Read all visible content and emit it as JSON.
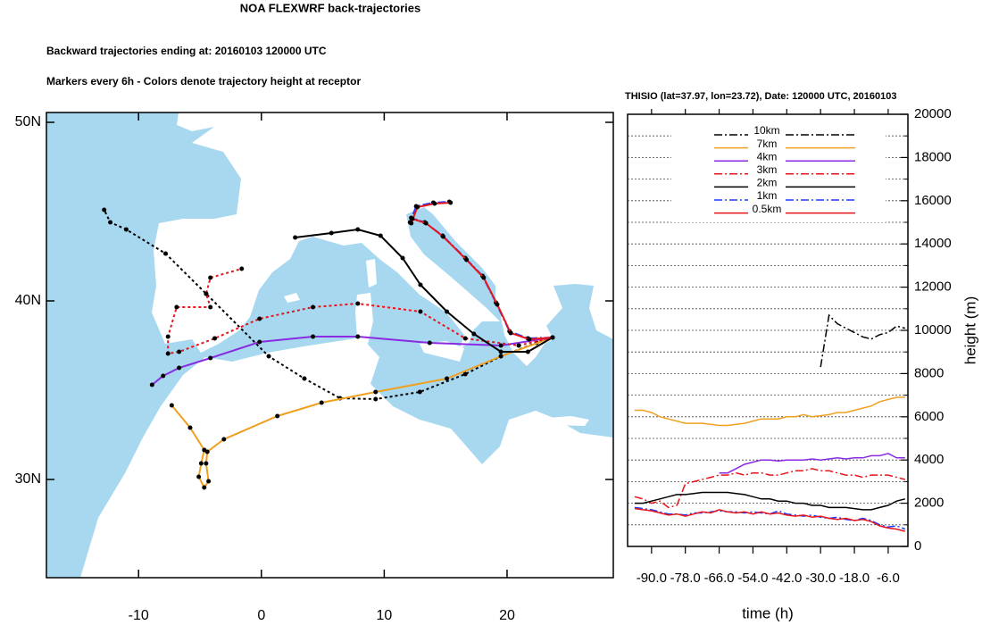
{
  "chart_data": [
    {
      "type": "map",
      "title": "NOA FLEXWRF back-trajectories",
      "subtitle": "Backward trajectories ending at: 20160103  120000 UTC",
      "annotation": "Markers every 6h - Colors denote trajectory height at receptor",
      "xlim": [
        -17.5,
        28.65
      ],
      "ylim": [
        24.5,
        50.55
      ],
      "xticks": [
        -10,
        0,
        10,
        20
      ],
      "yticks": [
        {
          "value": 30,
          "label": "30N"
        },
        {
          "value": 40,
          "label": "40N"
        },
        {
          "value": 50,
          "label": "50N"
        }
      ],
      "series": [
        {
          "color": "#000000",
          "dash": "dotted",
          "x": [
            23.7,
            22.4,
            19.5,
            16.6,
            12.9,
            9.3,
            6.4,
            3.5,
            0.6,
            -4.5,
            -7.8,
            -11.0,
            -12.3,
            -12.8
          ],
          "values": [
            37.95,
            37.65,
            36.9,
            35.9,
            34.9,
            34.5,
            34.55,
            35.65,
            36.9,
            40.4,
            42.65,
            44.0,
            44.4,
            45.1
          ]
        },
        {
          "color": "#f0a020",
          "dash": "solid",
          "x": [
            23.7,
            19.5,
            15.1,
            9.3,
            4.9,
            1.3,
            -3.05,
            -4.4,
            -4.5,
            -4.3,
            -4.65,
            -5.1,
            -4.9,
            -4.65,
            -5.8,
            -7.3
          ],
          "values": [
            37.95,
            36.9,
            35.65,
            34.9,
            34.3,
            33.55,
            32.25,
            31.55,
            30.9,
            29.9,
            29.55,
            30.15,
            30.9,
            31.65,
            32.9,
            34.15
          ]
        },
        {
          "color": "#8a2be2",
          "dash": "solid",
          "x": [
            23.7,
            19.5,
            13.7,
            7.85,
            4.2,
            -0.15,
            -4.15,
            -6.7,
            -8.0,
            -8.9
          ],
          "values": [
            37.95,
            37.5,
            37.65,
            38.0,
            38.0,
            37.7,
            36.8,
            36.25,
            35.8,
            35.3
          ]
        },
        {
          "color": "#e8141c",
          "dash": "dotted",
          "x": [
            23.7,
            20.95,
            16.6,
            12.95,
            7.85,
            4.2,
            -0.15,
            -3.8,
            -6.7,
            -7.6,
            -7.6,
            -6.9,
            -4.15,
            -4.5,
            -4.15,
            -1.6
          ],
          "values": [
            37.95,
            37.5,
            37.9,
            39.4,
            39.85,
            39.65,
            39.0,
            37.9,
            37.15,
            37.05,
            38.0,
            39.65,
            39.65,
            40.4,
            41.3,
            41.8
          ]
        },
        {
          "color": "#000000",
          "dash": "solid",
          "x": [
            23.7,
            21.7,
            19.5,
            17.3,
            15.1,
            12.95,
            11.5,
            9.7,
            7.85,
            5.7,
            2.75
          ],
          "values": [
            37.95,
            37.15,
            37.15,
            38.15,
            39.4,
            40.9,
            42.4,
            43.65,
            44.0,
            43.8,
            43.55
          ]
        },
        {
          "color": "#1f3cff",
          "dash": "dashdot",
          "x": [
            23.7,
            21.7,
            20.2,
            19.1,
            18.0,
            16.6,
            14.75,
            13.3,
            12.2,
            12.1,
            12.6,
            14.0,
            15.3
          ],
          "values": [
            37.95,
            37.9,
            38.3,
            39.9,
            41.4,
            42.4,
            43.65,
            44.4,
            44.65,
            44.4,
            45.3,
            45.5,
            45.55
          ]
        },
        {
          "color": "#e8141c",
          "dash": "solid",
          "x": [
            23.7,
            21.8,
            20.3,
            19.2,
            18.1,
            16.7,
            14.8,
            13.4,
            12.3,
            12.2,
            12.7,
            14.1,
            15.4
          ],
          "values": [
            37.95,
            37.85,
            38.2,
            39.8,
            41.3,
            42.3,
            43.6,
            44.35,
            44.6,
            44.35,
            45.25,
            45.45,
            45.5
          ]
        }
      ]
    },
    {
      "type": "line",
      "title": "THISIO (lat=37.97,  lon=23.72), Date: 120000 UTC, 20160103",
      "xlabel": "time (h)",
      "ylabel": "height (m)",
      "xlim": [
        -98.5,
        1
      ],
      "ylim": [
        0,
        20000
      ],
      "xticks": [
        {
          "value": -90,
          "label": "-90.0"
        },
        {
          "value": -78,
          "label": "-78.0"
        },
        {
          "value": -66,
          "label": "-66.0"
        },
        {
          "value": -54,
          "label": "-54.0"
        },
        {
          "value": -42,
          "label": "-42.0"
        },
        {
          "value": -30,
          "label": "-30.0"
        },
        {
          "value": -18,
          "label": "-18.0"
        },
        {
          "value": -6,
          "label": "-6.0"
        }
      ],
      "yticks": [
        0,
        2000,
        4000,
        6000,
        8000,
        10000,
        12000,
        14000,
        16000,
        18000,
        20000
      ],
      "yminorticks": [
        1000,
        3000,
        5000,
        7000,
        9000,
        11000,
        13000,
        15000,
        17000,
        19000
      ],
      "grid": true,
      "x": [
        -96,
        -93,
        -90,
        -87,
        -84,
        -81,
        -78,
        -75,
        -72,
        -69,
        -66,
        -63,
        -60,
        -57,
        -54,
        -51,
        -48,
        -45,
        -42,
        -39,
        -36,
        -33,
        -30,
        -27,
        -24,
        -21,
        -18,
        -15,
        -12,
        -9,
        -6,
        -3,
        0
      ],
      "series": [
        {
          "name": "10km",
          "color": "#000000",
          "dash": "dashdot",
          "values": [
            null,
            null,
            null,
            null,
            null,
            null,
            null,
            null,
            null,
            null,
            null,
            null,
            null,
            null,
            null,
            null,
            null,
            null,
            null,
            null,
            null,
            null,
            8300,
            10700,
            10300,
            10100,
            9900,
            9700,
            9600,
            9800,
            9900,
            10200,
            10100
          ]
        },
        {
          "name": "7km",
          "color": "#f0a020",
          "dash": "solid",
          "values": [
            6300,
            6300,
            6200,
            6000,
            5900,
            5800,
            5700,
            5700,
            5700,
            5650,
            5600,
            5600,
            5650,
            5700,
            5800,
            5900,
            5900,
            5900,
            6000,
            6000,
            6100,
            6000,
            6050,
            6100,
            6200,
            6200,
            6300,
            6400,
            6500,
            6700,
            6800,
            6900,
            6900
          ]
        },
        {
          "name": "4km",
          "color": "#8a2be2",
          "dash": "solid",
          "values": [
            null,
            null,
            null,
            null,
            null,
            null,
            null,
            null,
            null,
            null,
            3400,
            3400,
            3600,
            3800,
            3900,
            4000,
            4000,
            3950,
            4000,
            4000,
            4000,
            4050,
            4000,
            4050,
            4100,
            4050,
            4100,
            4100,
            4200,
            4200,
            4300,
            4100,
            4100
          ]
        },
        {
          "name": "3km",
          "color": "#e8141c",
          "dash": "dashdot",
          "values": [
            2300,
            2200,
            2000,
            2100,
            1800,
            1900,
            2900,
            3000,
            3100,
            3200,
            3300,
            3300,
            3400,
            3300,
            3400,
            3400,
            3300,
            3300,
            3400,
            3500,
            3500,
            3600,
            3500,
            3500,
            3400,
            3300,
            3300,
            3200,
            3300,
            3300,
            3300,
            3200,
            3100
          ]
        },
        {
          "name": "2km",
          "color": "#000000",
          "dash": "solid",
          "values": [
            2000,
            2000,
            2100,
            2200,
            2300,
            2400,
            2400,
            2450,
            2500,
            2500,
            2500,
            2500,
            2450,
            2400,
            2300,
            2200,
            2200,
            2100,
            2100,
            2000,
            2000,
            1900,
            1900,
            1800,
            1800,
            1800,
            1750,
            1700,
            1700,
            1800,
            1900,
            2100,
            2200
          ]
        },
        {
          "name": "1km",
          "color": "#1f3cff",
          "dash": "dashdot",
          "values": [
            1800,
            1750,
            1700,
            1600,
            1500,
            1500,
            1450,
            1550,
            1550,
            1600,
            1650,
            1600,
            1600,
            1550,
            1600,
            1550,
            1500,
            1650,
            1500,
            1450,
            1400,
            1450,
            1350,
            1300,
            1350,
            1250,
            1200,
            1300,
            1200,
            1000,
            900,
            950,
            800
          ]
        },
        {
          "name": "0.5km",
          "color": "#e8141c",
          "dash": "solid",
          "values": [
            1750,
            1700,
            1650,
            1550,
            1450,
            1500,
            1400,
            1500,
            1600,
            1550,
            1700,
            1600,
            1550,
            1600,
            1500,
            1600,
            1500,
            1550,
            1450,
            1400,
            1450,
            1350,
            1400,
            1300,
            1250,
            1300,
            1200,
            1250,
            1150,
            950,
            850,
            800,
            700
          ]
        }
      ]
    }
  ]
}
